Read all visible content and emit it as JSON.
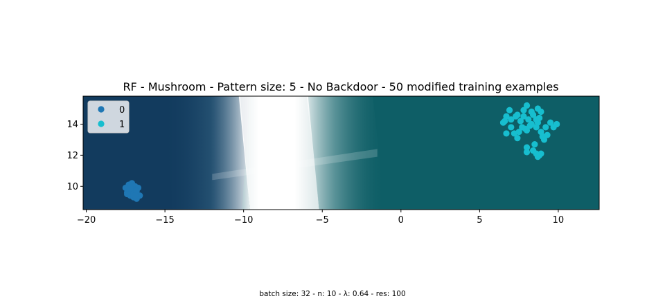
{
  "chart_data": {
    "type": "scatter",
    "title": "RF - Mushroom - Pattern size: 5 - No Backdoor - 50 modified training examples",
    "caption": "batch size: 32 - n: 10 - λ: 0.64 - res: 100",
    "xlim": [
      -20.2,
      12.6
    ],
    "ylim": [
      8.5,
      15.8
    ],
    "x_ticks": [
      -20,
      -15,
      -10,
      -5,
      0,
      5,
      10
    ],
    "y_ticks": [
      10,
      12,
      14
    ],
    "grid": false,
    "legend_position": "top-left",
    "background": {
      "description": "decision surface",
      "class0_color": "#123b5e",
      "class1_color": "#0e5e66",
      "boundary_color": "#ffffff"
    },
    "series": [
      {
        "name": "0",
        "color": "#1f77b4",
        "points": [
          [
            -17.5,
            9.9
          ],
          [
            -17.3,
            10.1
          ],
          [
            -17.1,
            10.2
          ],
          [
            -16.9,
            10.0
          ],
          [
            -16.7,
            9.9
          ],
          [
            -17.4,
            9.6
          ],
          [
            -17.2,
            9.4
          ],
          [
            -17.0,
            9.3
          ],
          [
            -16.8,
            9.2
          ],
          [
            -16.6,
            9.4
          ],
          [
            -17.3,
            9.7
          ],
          [
            -17.1,
            9.8
          ],
          [
            -16.9,
            9.6
          ],
          [
            -17.0,
            9.5
          ],
          [
            -16.8,
            9.7
          ],
          [
            -17.2,
            9.9
          ],
          [
            -17.4,
            9.5
          ],
          [
            -16.9,
            9.4
          ]
        ]
      },
      {
        "name": "1",
        "color": "#17becf",
        "points": [
          [
            6.9,
            14.9
          ],
          [
            7.4,
            14.6
          ],
          [
            7.8,
            14.9
          ],
          [
            8.0,
            15.2
          ],
          [
            8.3,
            14.8
          ],
          [
            8.7,
            15.0
          ],
          [
            8.9,
            14.8
          ],
          [
            6.6,
            14.2
          ],
          [
            6.7,
            14.5
          ],
          [
            7.0,
            14.3
          ],
          [
            7.3,
            14.5
          ],
          [
            7.6,
            14.2
          ],
          [
            7.8,
            14.5
          ],
          [
            8.1,
            14.3
          ],
          [
            8.4,
            14.6
          ],
          [
            8.6,
            14.3
          ],
          [
            8.8,
            14.4
          ],
          [
            6.5,
            14.1
          ],
          [
            7.0,
            13.8
          ],
          [
            7.2,
            13.4
          ],
          [
            7.5,
            13.5
          ],
          [
            7.7,
            13.8
          ],
          [
            7.9,
            13.7
          ],
          [
            8.2,
            13.9
          ],
          [
            8.6,
            13.8
          ],
          [
            8.9,
            13.5
          ],
          [
            9.2,
            13.8
          ],
          [
            9.5,
            14.1
          ],
          [
            9.7,
            13.8
          ],
          [
            9.9,
            14.0
          ],
          [
            6.7,
            13.4
          ],
          [
            7.4,
            13.1
          ],
          [
            8.0,
            13.6
          ],
          [
            8.7,
            14.1
          ],
          [
            9.0,
            13.2
          ],
          [
            9.3,
            13.3
          ],
          [
            9.1,
            13.0
          ],
          [
            8.5,
            12.7
          ],
          [
            8.0,
            12.5
          ],
          [
            8.0,
            12.2
          ],
          [
            8.4,
            12.3
          ],
          [
            8.6,
            12.1
          ],
          [
            8.8,
            12.0
          ],
          [
            8.7,
            11.9
          ],
          [
            8.9,
            12.1
          ],
          [
            8.3,
            14.0
          ]
        ]
      }
    ]
  }
}
